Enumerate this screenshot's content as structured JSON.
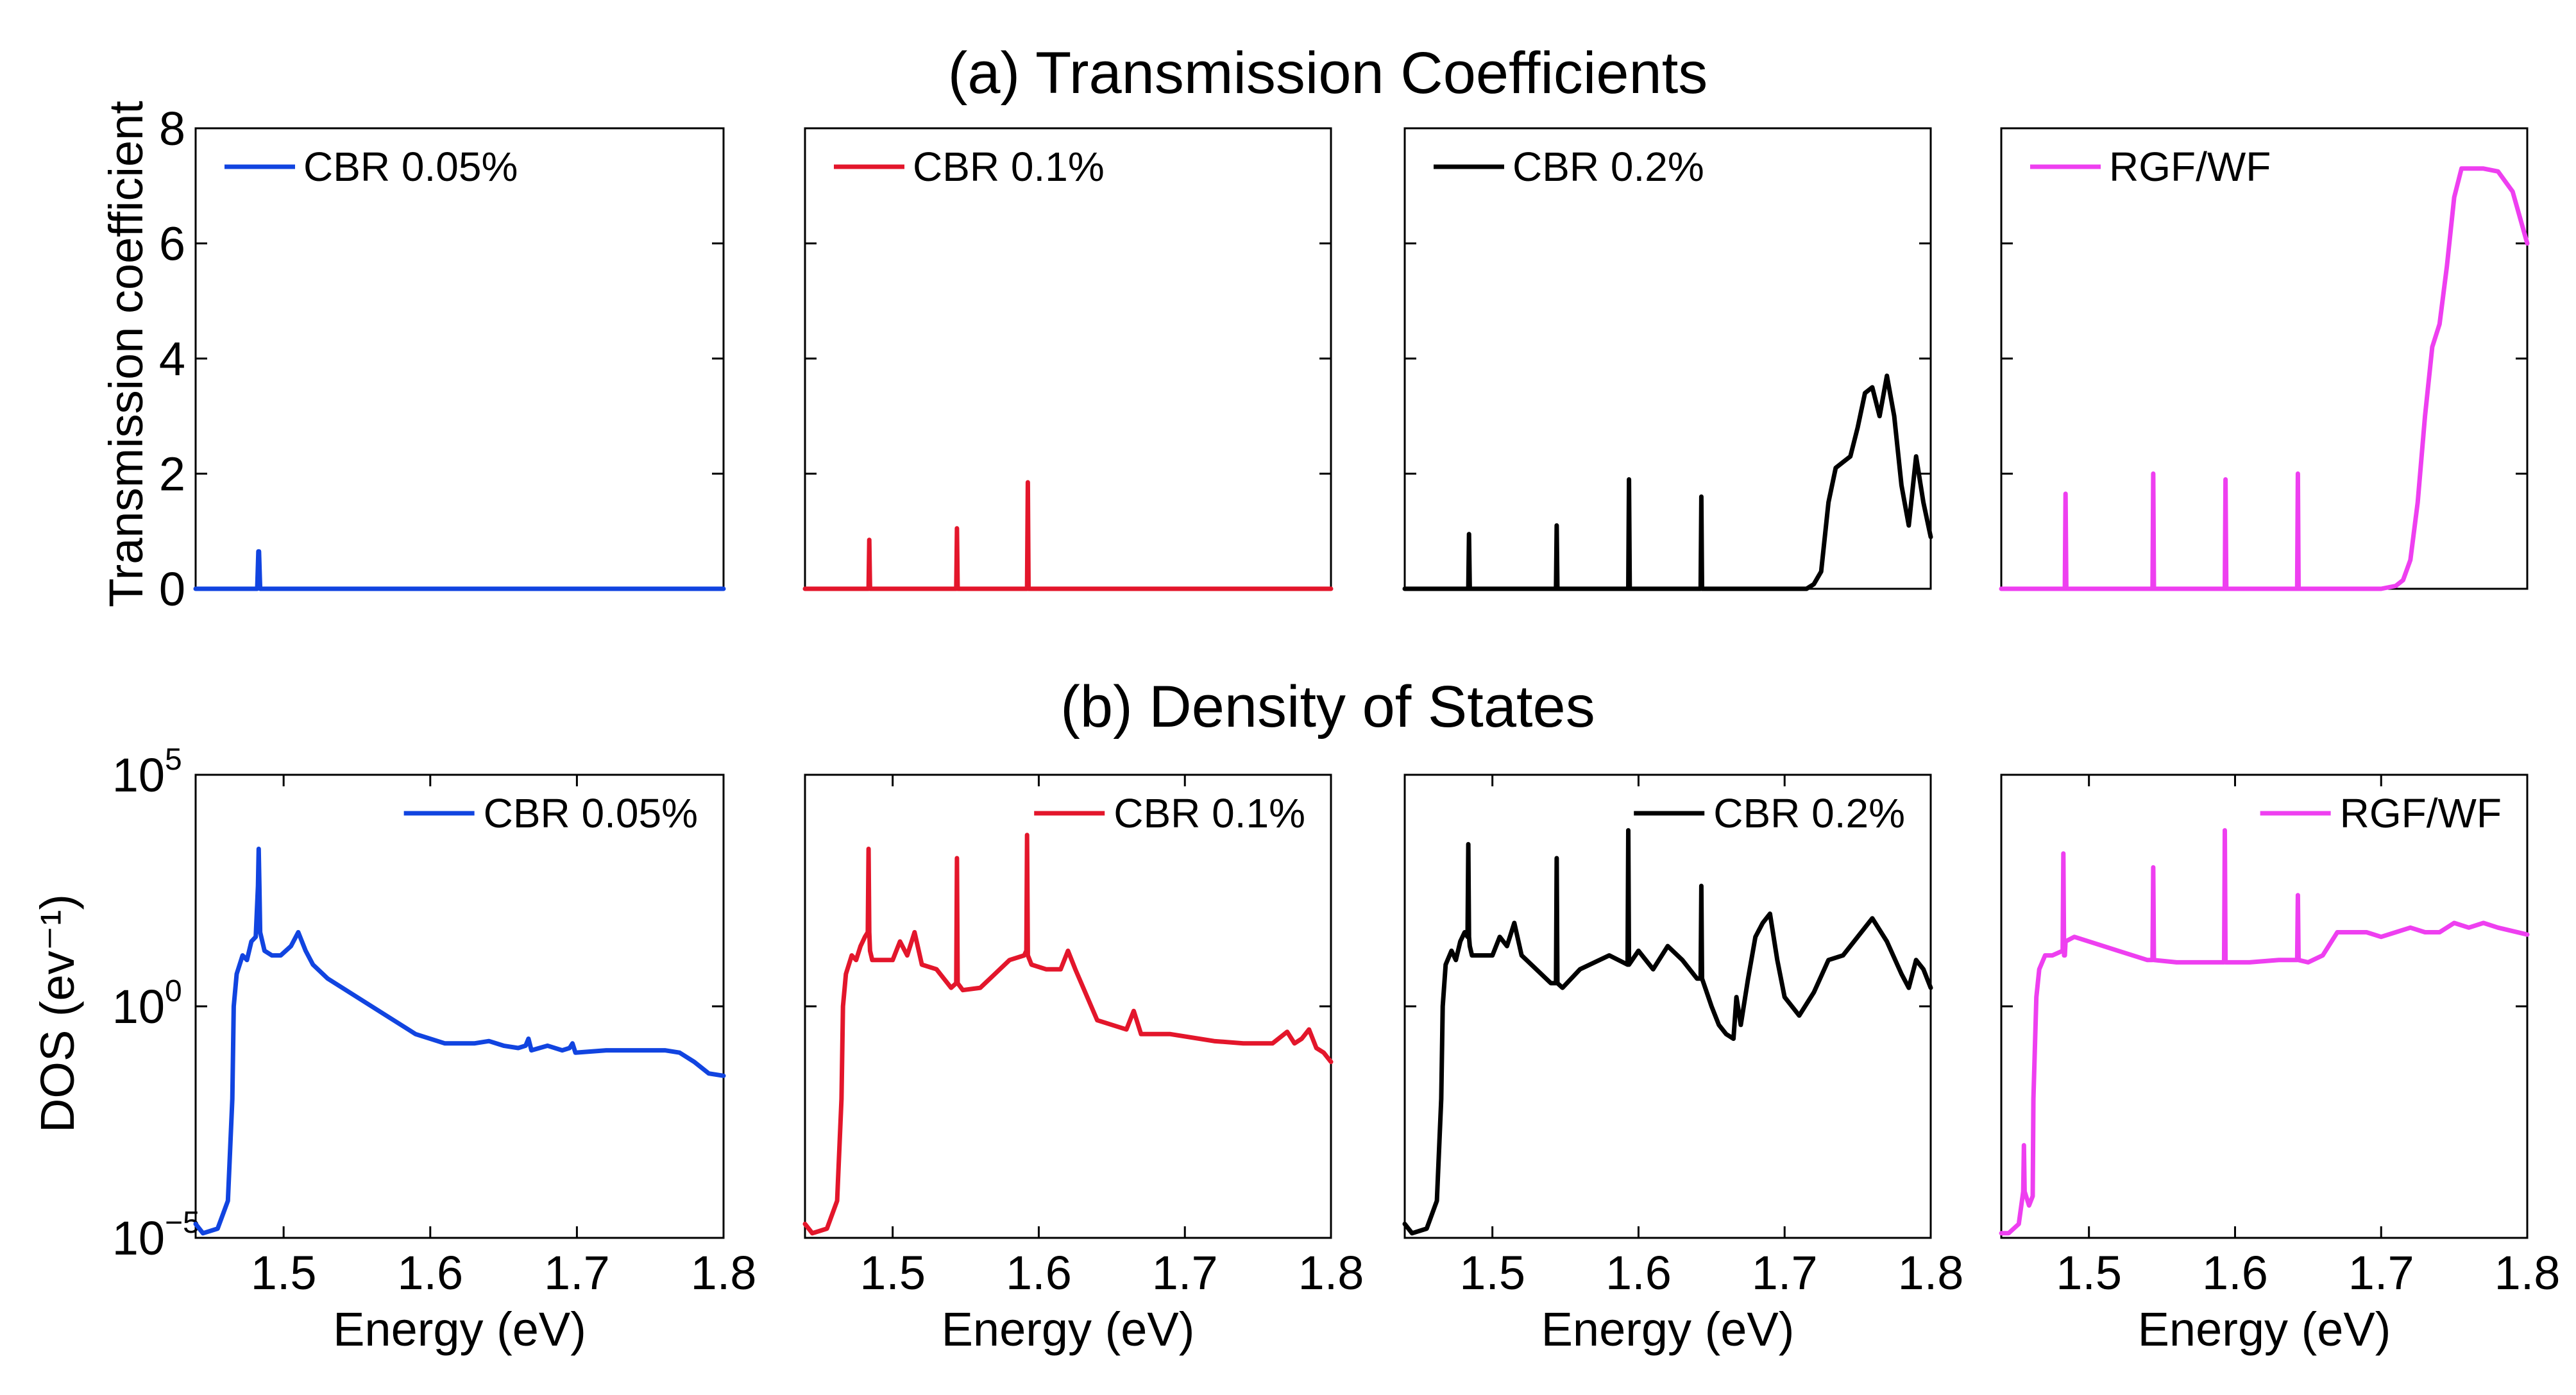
{
  "colors": {
    "cbr005": "#1144e0",
    "cbr01": "#e3162b",
    "cbr02": "#000000",
    "rgf": "#ee3ff0"
  },
  "rows": [
    {
      "title": "(a) Transmission Coefficients",
      "ylabel": "Transmission coefficient"
    },
    {
      "title": "(b) Density of States",
      "ylabel": "DOS (ev⁻¹)"
    }
  ],
  "xlabel": "Energy (eV)",
  "chart_data": [
    {
      "type": "line",
      "row": "top",
      "title": "(a) Transmission Coefficients",
      "xlabel": "",
      "ylabel": "Transmission coefficient",
      "xlim": [
        1.44,
        1.8
      ],
      "ylim": [
        0,
        8
      ],
      "yscale": "linear",
      "yticks": [
        0,
        2,
        4,
        6,
        8
      ],
      "ytick_labels": [
        "0",
        "2",
        "4",
        "6",
        "8"
      ],
      "panels": [
        {
          "series_name": "CBR 0.05%",
          "color_key": "cbr005",
          "legend_loc": "top-left",
          "x": [
            1.44,
            1.482,
            1.4828,
            1.4832,
            1.484,
            1.8
          ],
          "y": [
            0,
            0,
            0.65,
            0.65,
            0,
            0
          ]
        },
        {
          "series_name": "CBR 0.1%",
          "color_key": "cbr01",
          "legend_loc": "top-left",
          "x": [
            1.44,
            1.4835,
            1.484,
            1.4845,
            1.5435,
            1.544,
            1.5445,
            1.592,
            1.5925,
            1.593,
            1.8
          ],
          "y": [
            0,
            0,
            0.85,
            0,
            0,
            1.05,
            0,
            0,
            1.85,
            0,
            0
          ]
        },
        {
          "series_name": "CBR 0.2%",
          "color_key": "cbr02",
          "legend_loc": "top-left",
          "x": [
            1.44,
            1.4835,
            1.484,
            1.4845,
            1.5435,
            1.544,
            1.5445,
            1.593,
            1.5935,
            1.594,
            1.6425,
            1.643,
            1.6435,
            1.715,
            1.72,
            1.725,
            1.73,
            1.735,
            1.74,
            1.745,
            1.75,
            1.755,
            1.76,
            1.765,
            1.77,
            1.775,
            1.78,
            1.785,
            1.79,
            1.795,
            1.8
          ],
          "y": [
            0,
            0,
            0.95,
            0,
            0,
            1.1,
            0,
            0,
            1.9,
            0,
            0,
            1.6,
            0,
            0,
            0.08,
            0.3,
            1.5,
            2.1,
            2.2,
            2.3,
            2.8,
            3.4,
            3.5,
            3.0,
            3.7,
            3.0,
            1.8,
            1.1,
            2.3,
            1.5,
            0.9
          ]
        },
        {
          "series_name": "RGF/WF",
          "color_key": "rgf",
          "legend_loc": "top-left",
          "x": [
            1.44,
            1.4835,
            1.484,
            1.4845,
            1.5435,
            1.544,
            1.5445,
            1.593,
            1.5935,
            1.594,
            1.6425,
            1.643,
            1.6435,
            1.7,
            1.71,
            1.715,
            1.72,
            1.725,
            1.73,
            1.735,
            1.74,
            1.745,
            1.75,
            1.755,
            1.76,
            1.77,
            1.78,
            1.79,
            1.8
          ],
          "y": [
            0,
            0,
            1.65,
            0,
            0,
            2.0,
            0,
            0,
            1.9,
            0,
            0,
            2.0,
            0,
            0,
            0.05,
            0.15,
            0.5,
            1.5,
            3.0,
            4.2,
            4.6,
            5.6,
            6.8,
            7.3,
            7.3,
            7.3,
            7.25,
            6.9,
            6.0
          ]
        }
      ]
    },
    {
      "type": "line",
      "row": "bottom",
      "title": "(b) Density of States",
      "xlabel": "Energy (eV)",
      "ylabel": "DOS (ev⁻¹)",
      "xlim": [
        1.44,
        1.8
      ],
      "ylim": [
        -5,
        5
      ],
      "yscale": "log10",
      "yticks": [
        -5,
        0,
        5
      ],
      "ytick_labels": [
        {
          "base": "10",
          "exp": "−5"
        },
        {
          "base": "10",
          "exp": "0"
        },
        {
          "base": "10",
          "exp": "5"
        }
      ],
      "xticks": [
        1.5,
        1.6,
        1.7,
        1.8
      ],
      "xtick_labels": [
        "1.5",
        "1.6",
        "1.7",
        "1.8"
      ],
      "panels": [
        {
          "series_name": "CBR 0.05%",
          "color_key": "cbr005",
          "legend_loc": "top-right",
          "x": [
            1.44,
            1.445,
            1.455,
            1.462,
            1.465,
            1.466,
            1.468,
            1.472,
            1.475,
            1.478,
            1.481,
            1.4825,
            1.483,
            1.4835,
            1.484,
            1.487,
            1.492,
            1.498,
            1.505,
            1.51,
            1.515,
            1.52,
            1.53,
            1.55,
            1.57,
            1.59,
            1.61,
            1.63,
            1.64,
            1.65,
            1.66,
            1.665,
            1.667,
            1.669,
            1.68,
            1.69,
            1.695,
            1.697,
            1.699,
            1.72,
            1.74,
            1.76,
            1.77,
            1.78,
            1.79,
            1.8
          ],
          "y": [
            -4.7,
            -4.9,
            -4.8,
            -4.2,
            -2.0,
            0.0,
            0.7,
            1.1,
            1.0,
            1.4,
            1.5,
            2.6,
            3.4,
            2.6,
            1.6,
            1.2,
            1.1,
            1.1,
            1.3,
            1.6,
            1.2,
            0.9,
            0.6,
            0.2,
            -0.2,
            -0.6,
            -0.8,
            -0.8,
            -0.75,
            -0.85,
            -0.9,
            -0.85,
            -0.7,
            -0.95,
            -0.85,
            -0.95,
            -0.9,
            -0.8,
            -1.0,
            -0.95,
            -0.95,
            -0.95,
            -1.0,
            -1.2,
            -1.45,
            -1.5
          ]
        },
        {
          "series_name": "CBR 0.1%",
          "color_key": "cbr01",
          "legend_loc": "top-right",
          "x": [
            1.44,
            1.445,
            1.455,
            1.462,
            1.465,
            1.466,
            1.468,
            1.472,
            1.475,
            1.478,
            1.481,
            1.483,
            1.4835,
            1.484,
            1.4845,
            1.486,
            1.5,
            1.505,
            1.51,
            1.515,
            1.52,
            1.53,
            1.54,
            1.5435,
            1.544,
            1.5445,
            1.548,
            1.56,
            1.57,
            1.58,
            1.59,
            1.5915,
            1.592,
            1.5925,
            1.595,
            1.605,
            1.615,
            1.62,
            1.625,
            1.64,
            1.66,
            1.665,
            1.667,
            1.67,
            1.69,
            1.7,
            1.72,
            1.74,
            1.76,
            1.77,
            1.775,
            1.78,
            1.785,
            1.79,
            1.795,
            1.8
          ],
          "y": [
            -4.7,
            -4.9,
            -4.8,
            -4.2,
            -2.0,
            0.0,
            0.7,
            1.1,
            1.0,
            1.3,
            1.5,
            1.6,
            3.4,
            1.6,
            1.2,
            1.0,
            1.0,
            1.4,
            1.1,
            1.6,
            0.9,
            0.8,
            0.4,
            0.5,
            3.2,
            0.5,
            0.35,
            0.4,
            0.7,
            1.0,
            1.1,
            1.2,
            3.7,
            1.1,
            0.9,
            0.8,
            0.8,
            1.2,
            0.8,
            -0.3,
            -0.5,
            -0.1,
            -0.3,
            -0.6,
            -0.6,
            -0.65,
            -0.75,
            -0.8,
            -0.8,
            -0.55,
            -0.8,
            -0.7,
            -0.5,
            -0.9,
            -1.0,
            -1.2
          ]
        },
        {
          "series_name": "CBR 0.2%",
          "color_key": "cbr02",
          "legend_loc": "top-right",
          "x": [
            1.44,
            1.445,
            1.455,
            1.462,
            1.465,
            1.466,
            1.468,
            1.472,
            1.475,
            1.478,
            1.481,
            1.483,
            1.4835,
            1.484,
            1.4845,
            1.486,
            1.5,
            1.505,
            1.51,
            1.515,
            1.52,
            1.53,
            1.54,
            1.5435,
            1.544,
            1.5445,
            1.548,
            1.56,
            1.58,
            1.5925,
            1.593,
            1.5935,
            1.6,
            1.61,
            1.62,
            1.63,
            1.64,
            1.6425,
            1.643,
            1.6435,
            1.65,
            1.655,
            1.66,
            1.665,
            1.667,
            1.67,
            1.675,
            1.68,
            1.685,
            1.69,
            1.695,
            1.7,
            1.71,
            1.72,
            1.73,
            1.74,
            1.75,
            1.76,
            1.77,
            1.78,
            1.785,
            1.79,
            1.795,
            1.8
          ],
          "y": [
            -4.7,
            -4.9,
            -4.8,
            -4.2,
            -2.0,
            0.0,
            0.9,
            1.2,
            1.0,
            1.4,
            1.6,
            1.5,
            3.5,
            1.5,
            1.3,
            1.1,
            1.1,
            1.5,
            1.3,
            1.8,
            1.1,
            0.8,
            0.5,
            0.5,
            3.2,
            0.5,
            0.4,
            0.8,
            1.1,
            0.9,
            3.8,
            0.9,
            1.2,
            0.8,
            1.3,
            1.0,
            0.6,
            0.6,
            2.6,
            0.6,
            0.0,
            -0.4,
            -0.6,
            -0.7,
            0.2,
            -0.4,
            0.6,
            1.5,
            1.8,
            2.0,
            1.0,
            0.2,
            -0.2,
            0.3,
            1.0,
            1.1,
            1.5,
            1.9,
            1.4,
            0.7,
            0.4,
            1.0,
            0.8,
            0.4
          ]
        },
        {
          "series_name": "RGF/WF",
          "color_key": "rgf",
          "legend_loc": "top-right",
          "x": [
            1.44,
            1.445,
            1.452,
            1.455,
            1.4555,
            1.456,
            1.459,
            1.4615,
            1.462,
            1.464,
            1.466,
            1.47,
            1.475,
            1.482,
            1.4825,
            1.483,
            1.4835,
            1.484,
            1.49,
            1.5,
            1.52,
            1.54,
            1.5435,
            1.544,
            1.5445,
            1.56,
            1.58,
            1.5925,
            1.593,
            1.5935,
            1.61,
            1.63,
            1.6425,
            1.643,
            1.6435,
            1.65,
            1.66,
            1.67,
            1.675,
            1.69,
            1.7,
            1.71,
            1.72,
            1.73,
            1.74,
            1.75,
            1.76,
            1.77,
            1.78,
            1.8
          ],
          "y": [
            -4.9,
            -4.9,
            -4.7,
            -4.0,
            -3.0,
            -4.0,
            -4.3,
            -4.1,
            -2.0,
            0.2,
            0.8,
            1.1,
            1.1,
            1.2,
            3.3,
            1.1,
            1.1,
            1.4,
            1.5,
            1.4,
            1.2,
            1.0,
            1.0,
            3.0,
            1.0,
            0.95,
            0.95,
            0.95,
            3.8,
            0.95,
            0.95,
            1.0,
            1.0,
            2.4,
            1.0,
            0.95,
            1.1,
            1.6,
            1.6,
            1.6,
            1.5,
            1.6,
            1.7,
            1.6,
            1.6,
            1.8,
            1.7,
            1.8,
            1.7,
            1.55
          ]
        }
      ]
    }
  ]
}
